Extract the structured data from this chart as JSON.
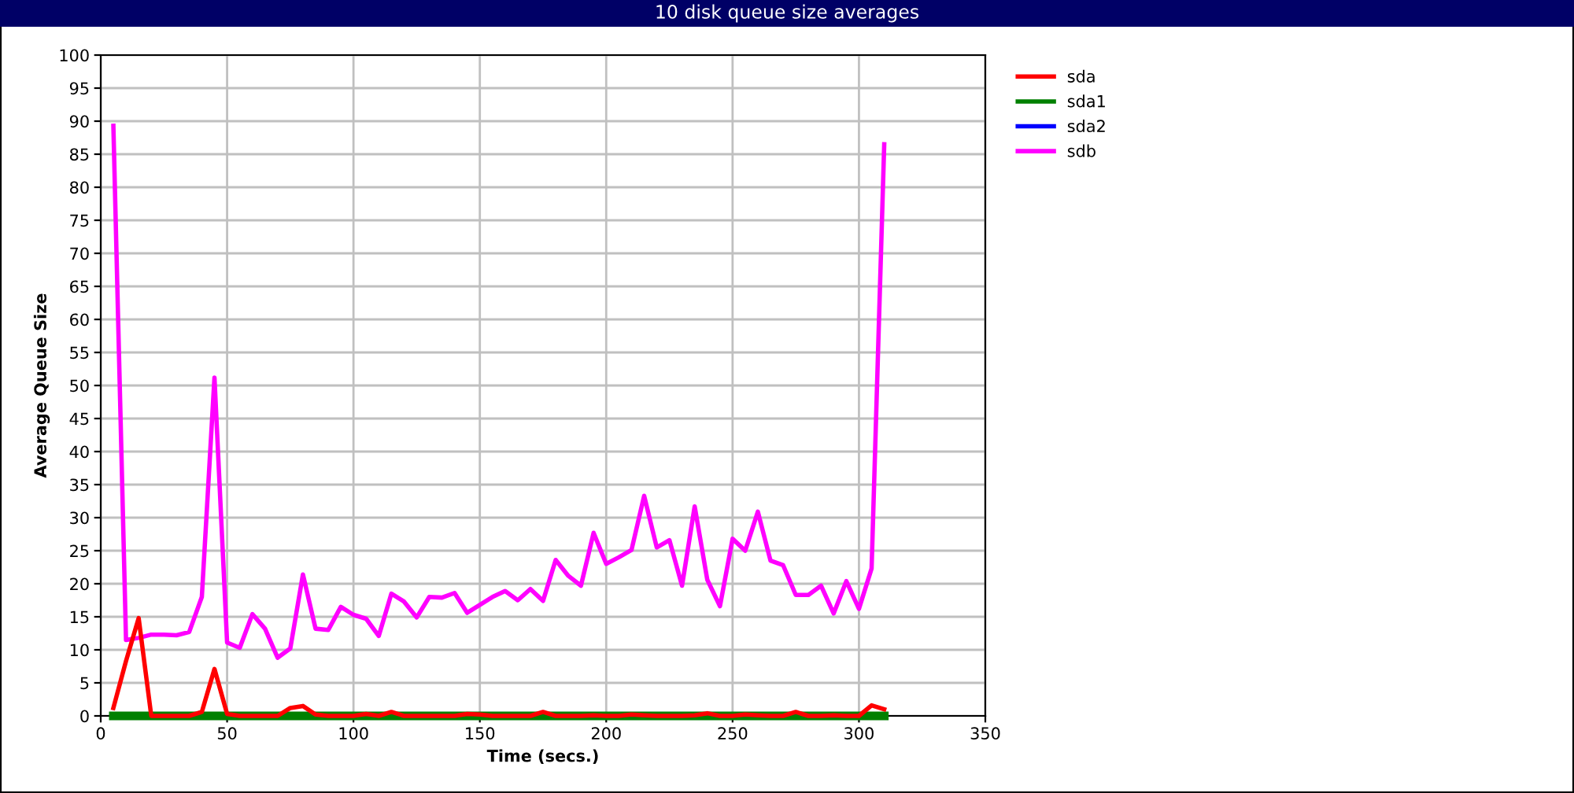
{
  "chart_data": {
    "type": "line",
    "title": "10 disk queue size averages",
    "xlabel": "Time (secs.)",
    "ylabel": "Average Queue Size",
    "x": [
      5,
      10,
      15,
      20,
      25,
      30,
      35,
      40,
      45,
      50,
      55,
      60,
      65,
      70,
      75,
      80,
      85,
      90,
      95,
      100,
      105,
      110,
      115,
      120,
      125,
      130,
      135,
      140,
      145,
      150,
      155,
      160,
      165,
      170,
      175,
      180,
      185,
      190,
      195,
      200,
      205,
      210,
      215,
      220,
      225,
      230,
      235,
      240,
      245,
      250,
      255,
      260,
      265,
      270,
      275,
      280,
      285,
      290,
      295,
      300,
      305,
      310
    ],
    "series": [
      {
        "name": "sda",
        "color": "#ff0000",
        "values": [
          1.2,
          8.3,
          14.8,
          0,
          0,
          0,
          0,
          0.6,
          7.1,
          0.3,
          0,
          0,
          0,
          0,
          1.2,
          1.5,
          0.2,
          0,
          0,
          0,
          0.3,
          0,
          0.6,
          0,
          0,
          0,
          0,
          0,
          0.3,
          0.2,
          0,
          0,
          0,
          0,
          0.6,
          0,
          0,
          0,
          0.1,
          0,
          0,
          0.2,
          0.1,
          0,
          0,
          0,
          0.1,
          0.4,
          0,
          0,
          0.2,
          0.1,
          0,
          0,
          0.6,
          0,
          0,
          0.1,
          0,
          0,
          1.6,
          1.0
        ]
      },
      {
        "name": "sda1",
        "color": "#008000",
        "values": [
          0,
          0,
          0,
          0,
          0,
          0,
          0,
          0,
          0,
          0,
          0,
          0,
          0,
          0,
          0,
          0,
          0,
          0,
          0,
          0,
          0,
          0,
          0,
          0,
          0,
          0,
          0,
          0,
          0,
          0,
          0,
          0,
          0,
          0,
          0,
          0,
          0,
          0,
          0,
          0,
          0,
          0,
          0,
          0,
          0,
          0,
          0,
          0,
          0,
          0,
          0,
          0,
          0,
          0,
          0,
          0,
          0,
          0,
          0,
          0,
          0,
          0
        ]
      },
      {
        "name": "sda2",
        "color": "#0000ff",
        "values": [
          null,
          null,
          null,
          null,
          null,
          null,
          null,
          null,
          null,
          null,
          null,
          null,
          null,
          null,
          null,
          null,
          null,
          null,
          null,
          null,
          null,
          null,
          null,
          null,
          null,
          null,
          null,
          null,
          null,
          null,
          null,
          null,
          null,
          null,
          null,
          null,
          null,
          null,
          null,
          null,
          null,
          null,
          null,
          null,
          null,
          null,
          null,
          null,
          null,
          null,
          null,
          null,
          null,
          null,
          null,
          null,
          null,
          null,
          null,
          null,
          null,
          null
        ]
      },
      {
        "name": "sdb",
        "color": "#ff00ff",
        "values": [
          89.3,
          11.5,
          11.8,
          12.3,
          12.3,
          12.2,
          12.7,
          18,
          51.2,
          11.1,
          10.3,
          15.4,
          13.2,
          8.8,
          10.2,
          21.4,
          13.2,
          13,
          16.5,
          15.3,
          14.7,
          12.1,
          18.5,
          17.3,
          14.9,
          18,
          17.9,
          18.6,
          15.6,
          16.8,
          18,
          18.9,
          17.5,
          19.2,
          17.4,
          23.6,
          21.2,
          19.7,
          27.7,
          23,
          24,
          25.1,
          33.3,
          25.5,
          26.6,
          19.7,
          31.7,
          20.6,
          16.6,
          26.8,
          25,
          30.9,
          23.5,
          22.8,
          18.3,
          18.3,
          19.7,
          15.5,
          20.4,
          16.2,
          22.3,
          86.5
        ]
      }
    ],
    "xlim": [
      0,
      350
    ],
    "xticks": [
      0,
      50,
      100,
      150,
      200,
      250,
      300,
      350
    ],
    "ylim": [
      0,
      100
    ],
    "yticks": [
      0,
      5,
      10,
      15,
      20,
      25,
      30,
      35,
      40,
      45,
      50,
      55,
      60,
      65,
      70,
      75,
      80,
      85,
      90,
      95,
      100
    ],
    "grid": true,
    "legend": "top right",
    "marker": "none",
    "line_style": "solid"
  }
}
